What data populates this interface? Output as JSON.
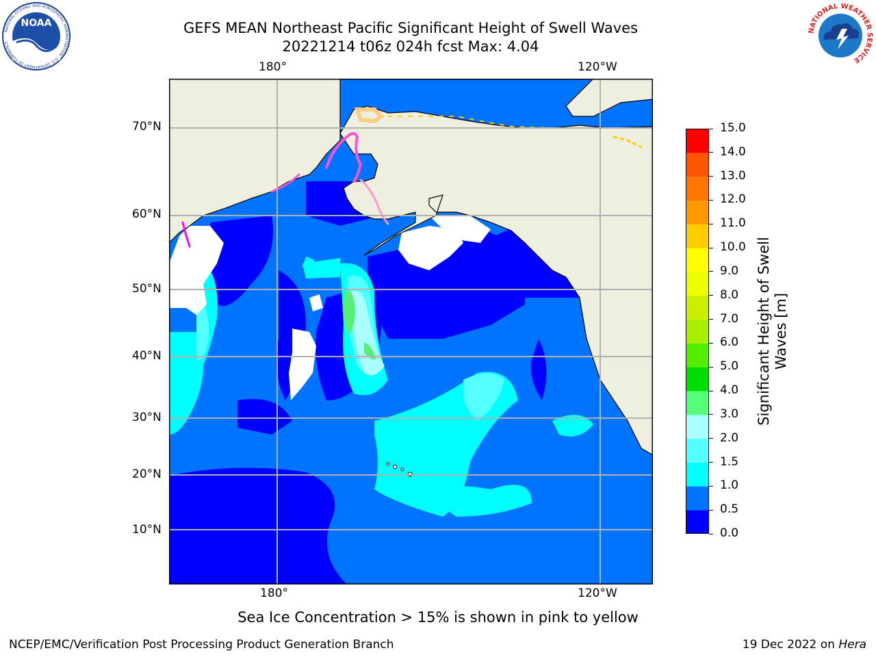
{
  "title": {
    "line1": "GEFS MEAN Northeast Pacific Significant Height of Swell Waves",
    "line2": "20221214 t06z 024h fcst   Max: 4.04"
  },
  "logos": {
    "left": {
      "name": "NOAA",
      "ring_text": "NATIONAL OCEANIC AND ATMOSPHERIC ADMINISTRATION · U.S. DEPARTMENT OF COMMERCE"
    },
    "right": {
      "name": "",
      "ring_text": "NATIONAL WEATHER SERVICE"
    }
  },
  "map": {
    "lon_ticks_top": [
      "180°",
      "120°W"
    ],
    "lon_ticks_bottom": [
      "180°",
      "120°W"
    ],
    "lat_ticks": [
      "70°N",
      "60°N",
      "50°N",
      "40°N",
      "30°N",
      "20°N",
      "10°N"
    ],
    "colors": {
      "land": "#efefdf",
      "ocean_base": "#0073ff",
      "grid": "#b0b0b0"
    }
  },
  "colorbar": {
    "label": "Significant Height of Swell Waves [m]",
    "ticks": [
      "0.0",
      "0.5",
      "1.0",
      "1.5",
      "2.0",
      "3.0",
      "4.0",
      "5.0",
      "6.0",
      "7.0",
      "8.0",
      "9.0",
      "10.0",
      "11.0",
      "12.0",
      "13.0",
      "14.0",
      "15.0"
    ],
    "colors": [
      "#0000ff",
      "#0073ff",
      "#00ffff",
      "#55ffff",
      "#aaffff",
      "#55ff77",
      "#00dd00",
      "#55ee00",
      "#aaee00",
      "#ccee00",
      "#eeff00",
      "#ffff00",
      "#ffcc00",
      "#ff9900",
      "#ff7700",
      "#ff5500",
      "#ff0000"
    ]
  },
  "note": "Sea Ice Concentration > 15% is shown in pink to yellow",
  "footer": {
    "left": "NCEP/EMC/Verification Post Processing Product Generation Branch",
    "right_date": "19 Dec 2022 on ",
    "right_machine": "Hera"
  }
}
